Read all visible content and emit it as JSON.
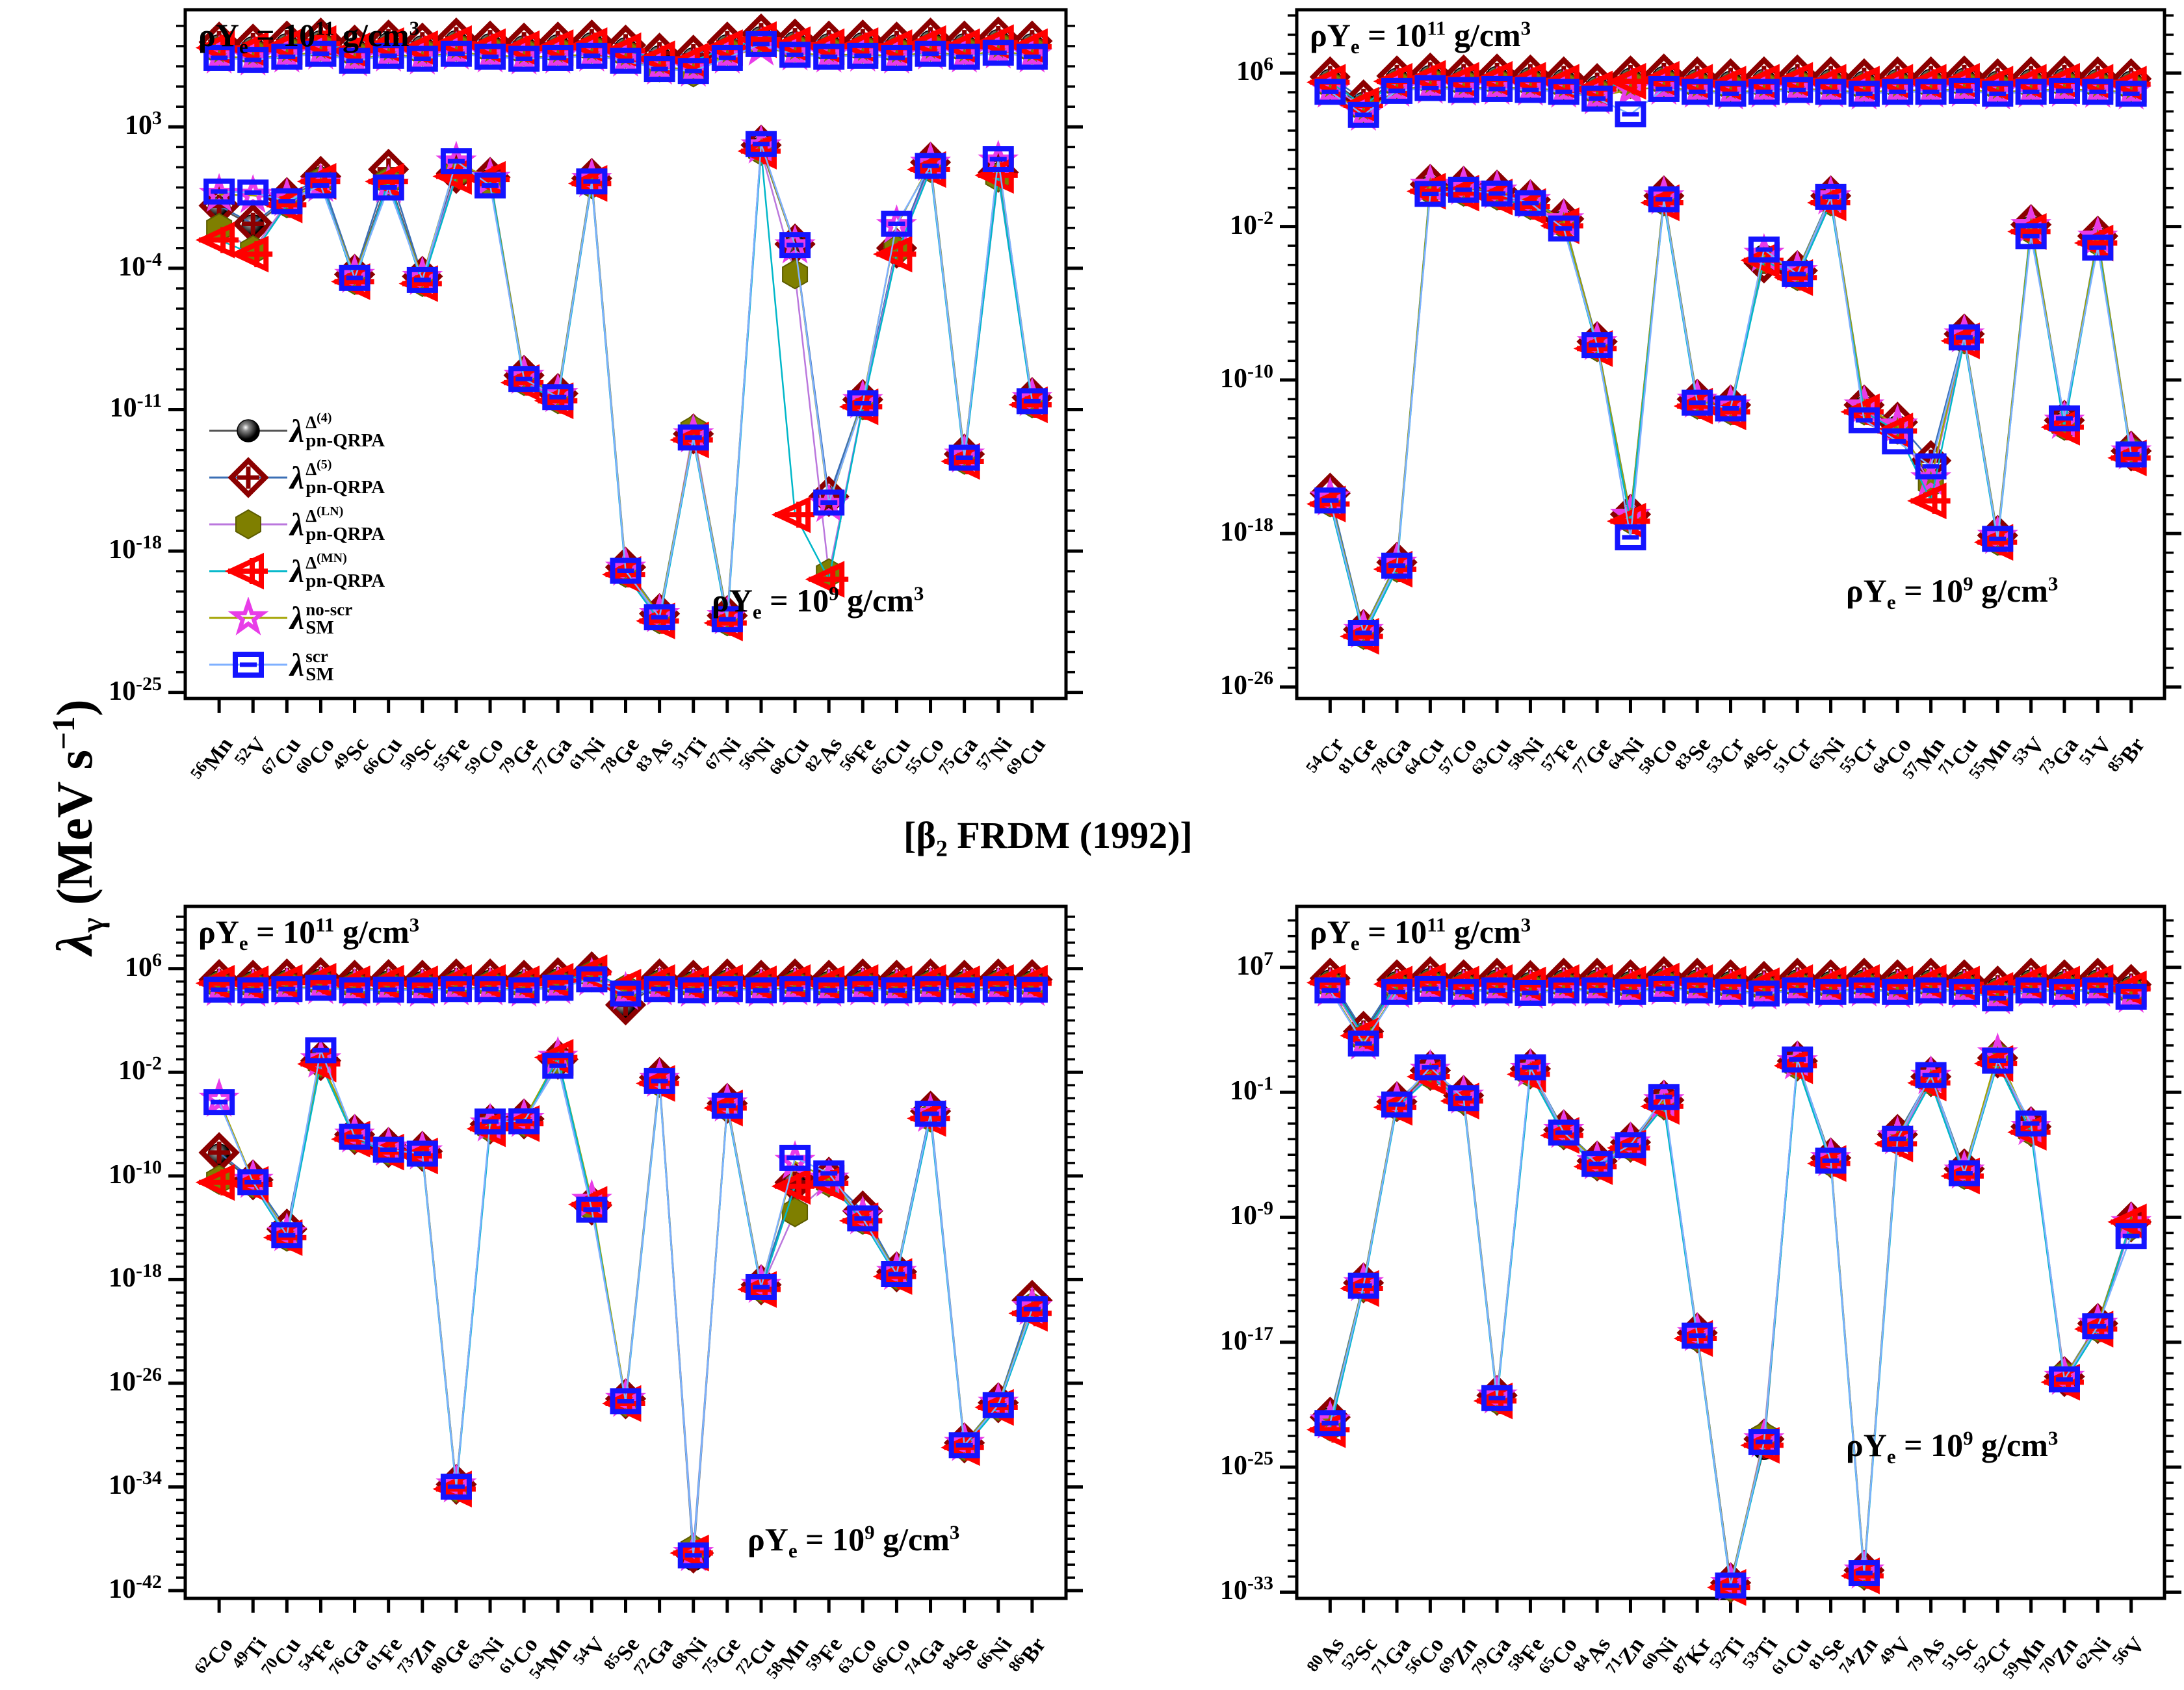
{
  "figure": {
    "ylabel": {
      "lambda": "λ",
      "sub": "γ",
      "rest": " (MeV s",
      "exp": "−1",
      "close": ")"
    },
    "caption": {
      "prefix": "[β",
      "sub": "2",
      "suffix": " FRDM (1992)]"
    },
    "annotation": {
      "rho": "ρY",
      "sub": "e",
      "eq": " = 10",
      "exp_high": "11",
      "exp_low": "9",
      "unit": " g/cm",
      "unit_exp": "3"
    },
    "background": "#ffffff",
    "axis_color": "#000000"
  },
  "series": [
    {
      "id": "circ",
      "lambda": "λ",
      "marker": "ball-icon",
      "color": "#000000",
      "line_color": "#555555",
      "sup_main": "Δ",
      "sup_exp": "(4)",
      "sub": "pn-QRPA"
    },
    {
      "id": "di",
      "lambda": "λ",
      "marker": "crossed-diamond-icon",
      "color": "#8b0000",
      "line_color": "#3b6fb5",
      "sup_main": "Δ",
      "sup_exp": "(5)",
      "sub": "pn-QRPA"
    },
    {
      "id": "hex",
      "lambda": "λ",
      "marker": "hexagon-icon",
      "color": "#7f7f00",
      "line_color": "#bb77dd",
      "sup_main": "Δ",
      "sup_exp": "(LN)",
      "sub": "pn-QRPA"
    },
    {
      "id": "tri",
      "lambda": "λ",
      "marker": "crossed-triangle-icon",
      "color": "#ff0000",
      "line_color": "#00b7c9",
      "sup_main": "Δ",
      "sup_exp": "(MN)",
      "sub": "pn-QRPA"
    },
    {
      "id": "star",
      "lambda": "λ",
      "marker": "star-icon",
      "color": "#e83ce8",
      "line_color": "#a3a300",
      "sup_main": "no-scr",
      "sup_exp": "",
      "sub": "SM"
    },
    {
      "id": "sq",
      "lambda": "λ",
      "marker": "crossed-square-icon",
      "color": "#1414ff",
      "line_color": "#7fb0ff",
      "sup_main": "scr",
      "sup_exp": "",
      "sub": "SM"
    }
  ],
  "chart_data": {
    "type": "line",
    "log_scale": true,
    "ylabel": "λγ (MeV s⁻¹)",
    "caption": "[β2 FRDM (1992)]",
    "legend_position": "upper-left panel, inside",
    "series_legend": [
      "λ^Δ(4)_pn-QRPA",
      "λ^Δ(5)_pn-QRPA",
      "λ^Δ(LN)_pn-QRPA",
      "λ^Δ(MN)_pn-QRPA",
      "λ^no-scr_SM",
      "λ^scr_SM"
    ],
    "panels": [
      {
        "id": "top-left",
        "ylim": [
          -25.3,
          8.8
        ],
        "ytick_exponents": [
          3,
          -4,
          -11,
          -18,
          -25
        ],
        "categories": [
          "56Mn",
          "52V",
          "67Cu",
          "60Co",
          "49Sc",
          "66Cu",
          "50Sc",
          "55Fe",
          "59Co",
          "79Ge",
          "77Ga",
          "61Ni",
          "78Ge",
          "83As",
          "51Ti",
          "67Ni",
          "56Ni",
          "68Cu",
          "82As",
          "56Fe",
          "65Cu",
          "55Co",
          "75Ga",
          "57Ni",
          "69Cu"
        ],
        "high": [
          6.9,
          6.8,
          6.95,
          7.1,
          6.75,
          7.0,
          6.85,
          7.1,
          6.95,
          6.85,
          6.9,
          7.0,
          6.75,
          6.35,
          6.25,
          6.9,
          7.3,
          7.05,
          6.95,
          7.0,
          6.9,
          7.1,
          6.95,
          7.15,
          6.95
        ],
        "low": [
          -2.3,
          -2.9,
          -0.7,
          0.4,
          -4.5,
          0.4,
          -4.6,
          0.8,
          0.3,
          -9.5,
          -10.4,
          0.25,
          -19.0,
          -21.3,
          -12.4,
          -21.4,
          1.9,
          -3.0,
          -15.6,
          -10.7,
          -3.0,
          1.05,
          -13.4,
          0.6,
          -10.6
        ],
        "high_overrides": {
          "13": {
            "hex": 5.95
          },
          "14": {
            "hex": 5.7
          },
          "16": {
            "sq": 7.1
          }
        },
        "low_overrides": {
          "0": {
            "circ": -1.0,
            "di": -0.9,
            "hex": -2.0,
            "tri": -2.6,
            "star": -0.35,
            "sq": -0.2
          },
          "1": {
            "circ": -1.9,
            "di": -1.8,
            "hex": -3.1,
            "tri": -3.3,
            "star": -0.4,
            "sq": -0.25
          },
          "3": {
            "di": 0.55,
            "tri": 0.3,
            "sq": 0.1,
            "star": 0.15
          },
          "5": {
            "di": 0.9,
            "tri": 0.3,
            "sq": 0.0,
            "star": 0.1
          },
          "7": {
            "sq": 1.3,
            "star": 1.25,
            "tri": 0.55,
            "di": 0.7
          },
          "8": {
            "sq": 0.1,
            "tri": 0.4
          },
          "11": {
            "sq": 0.3,
            "tri": 0.2
          },
          "14": {
            "hex": -12.0,
            "tri": -12.5,
            "circ": -12.3
          },
          "16": {
            "sq": 2.15,
            "star": 2.05,
            "tri": 1.8
          },
          "17": {
            "di": -2.8,
            "circ": -2.9,
            "hex": -4.3,
            "tri": -16.2,
            "sq": -2.85,
            "star": -2.9
          },
          "18": {
            "circ": -15.5,
            "di": -15.3,
            "sq": -15.6,
            "star": -15.7,
            "tri": -19.4,
            "hex": -19.1
          },
          "20": {
            "sq": -1.8,
            "star": -1.9,
            "tri": -3.3,
            "di": -3.0
          },
          "23": {
            "sq": 1.4,
            "star": 1.3,
            "tri": 0.6,
            "di": 0.75
          }
        }
      },
      {
        "id": "top-right",
        "ylim": [
          -26.6,
          9.3
        ],
        "ytick_exponents": [
          6,
          -2,
          -10,
          -18,
          -26
        ],
        "categories": [
          "54Cr",
          "81Ge",
          "78Ga",
          "64Cu",
          "57Co",
          "63Cu",
          "58Ni",
          "57Fe",
          "77Ge",
          "64Ni",
          "58Co",
          "83Se",
          "53Cr",
          "48Sc",
          "51Cr",
          "65Ni",
          "55Cr",
          "64Co",
          "57Mn",
          "71Cu",
          "55Mn",
          "53V",
          "73Ga",
          "51V",
          "85Br"
        ],
        "high": [
          5.5,
          4.3,
          5.55,
          5.7,
          5.6,
          5.65,
          5.6,
          5.5,
          5.15,
          5.55,
          5.65,
          5.5,
          5.4,
          5.5,
          5.6,
          5.5,
          5.4,
          5.5,
          5.5,
          5.55,
          5.4,
          5.5,
          5.55,
          5.5,
          5.4
        ],
        "low": [
          -16.3,
          -23.2,
          -19.7,
          0.0,
          -0.1,
          -0.3,
          -0.8,
          -1.8,
          -8.2,
          -17.2,
          -0.6,
          -11.2,
          -11.5,
          -3.6,
          -4.5,
          -0.6,
          -11.5,
          -12.5,
          -15.3,
          -7.8,
          -18.3,
          -2.1,
          -12.3,
          -2.7,
          -13.9
        ],
        "high_overrides": {
          "9": {
            "sq": 3.85
          }
        },
        "low_overrides": {
          "0": {
            "di": -15.9
          },
          "3": {
            "sq": -0.3
          },
          "7": {
            "sq": -2.1
          },
          "9": {
            "sq": -18.2
          },
          "13": {
            "sq": -3.2,
            "di": -3.9
          },
          "14": {
            "di": -4.3
          },
          "15": {
            "sq": -0.45
          },
          "16": {
            "sq": -12.1
          },
          "17": {
            "sq": -13.2,
            "di": -12.2
          },
          "18": {
            "di": -14.2,
            "tri": -16.3,
            "sq": -14.5
          },
          "19": {
            "di": -7.6
          },
          "21": {
            "sq": -2.5
          },
          "22": {
            "sq": -12.0
          },
          "23": {
            "sq": -3.1,
            "di": -2.5
          },
          "24": {
            "hex": -13.7
          }
        }
      },
      {
        "id": "bottom-left",
        "ylim": [
          -42.6,
          10.8
        ],
        "ytick_exponents": [
          6,
          -2,
          -10,
          -18,
          -26,
          -34,
          -42
        ],
        "categories": [
          "62Co",
          "49Ti",
          "70Cu",
          "54Fe",
          "76Ga",
          "61Fe",
          "73Zn",
          "80Ge",
          "63Ni",
          "61Co",
          "54Mn",
          "54V",
          "85Se",
          "72Ga",
          "68Ni",
          "75Ge",
          "72Cu",
          "58Mn",
          "59Fe",
          "63Co",
          "66Co",
          "74Ga",
          "84Se",
          "66Ni",
          "86Br"
        ],
        "high": [
          4.85,
          4.8,
          4.9,
          5.0,
          4.8,
          4.85,
          4.8,
          4.9,
          4.9,
          4.8,
          5.0,
          5.65,
          4.55,
          4.9,
          4.8,
          4.9,
          4.8,
          4.9,
          4.8,
          4.9,
          4.8,
          4.9,
          4.8,
          4.9,
          4.85
        ],
        "low": [
          -8.5,
          -10.5,
          -14.6,
          -1.2,
          -7.0,
          -8.0,
          -8.3,
          -34.0,
          -6.2,
          -5.8,
          -1.0,
          -12.3,
          -27.4,
          -2.7,
          -39.3,
          -4.6,
          -18.6,
          -10.8,
          -10.4,
          -13.3,
          -17.6,
          -5.4,
          -30.8,
          -27.7,
          -20.3
        ],
        "high_overrides": {
          "11": {
            "circ": 5.9,
            "di": 5.75
          },
          "12": {
            "circ": 3.0,
            "di": 3.2
          }
        },
        "low_overrides": {
          "0": {
            "sq": -4.3,
            "star": -4.1,
            "di": -8.2,
            "circ": -8.4,
            "tri": -10.5,
            "hex": -10.3
          },
          "2": {
            "di": -14.1
          },
          "3": {
            "sq": -0.3,
            "di": -1.1
          },
          "8": {
            "sq": -5.8,
            "star": -6.0
          },
          "10": {
            "sq": -1.5,
            "di": -1.0,
            "tri": -0.85
          },
          "11": {
            "sq": -12.6,
            "star": -11.9,
            "circ": -12.3,
            "tri": -12.2,
            "hex": -12.4,
            "di": -12.25
          },
          "13": {
            "di": -2.4
          },
          "14": {
            "circ": -39.6,
            "hex": -38.8,
            "tri": -39.1
          },
          "17": {
            "sq": -8.6,
            "star": -8.9,
            "tri": -10.8,
            "hex": -12.8,
            "di": -10.5,
            "circ": -10.6
          },
          "18": {
            "sq": -9.8,
            "di": -10.1
          },
          "19": {
            "di": -12.7
          },
          "21": {
            "di": -5.0,
            "sq": -5.2
          },
          "24": {
            "di": -19.6,
            "hex": -20.1,
            "tri": -20.6
          }
        }
      },
      {
        "id": "bottom-right",
        "ylim": [
          -33.4,
          10.9
        ],
        "ytick_exponents": [
          7,
          -1,
          -9,
          -17,
          -25,
          -33
        ],
        "categories": [
          "80As",
          "52Sc",
          "71Ga",
          "56Co",
          "69Zn",
          "79Ga",
          "58Fe",
          "65Co",
          "84As",
          "71Zn",
          "60Ni",
          "87Kr",
          "52Ti",
          "53Ti",
          "61Cu",
          "81Se",
          "74Zn",
          "49V",
          "79As",
          "51Sc",
          "52Cr",
          "59Mn",
          "70Zn",
          "62Ni",
          "56V"
        ],
        "high": [
          6.0,
          2.6,
          5.9,
          6.1,
          5.9,
          6.0,
          5.85,
          6.0,
          6.0,
          5.9,
          6.1,
          6.0,
          5.9,
          5.8,
          6.0,
          5.9,
          6.0,
          5.9,
          6.0,
          5.9,
          5.5,
          6.0,
          5.9,
          6.0,
          5.6
        ],
        "low": [
          -22.2,
          -13.4,
          -1.8,
          0.2,
          -1.4,
          -20.6,
          0.3,
          -3.6,
          -5.6,
          -4.4,
          -1.7,
          -16.6,
          -32.6,
          -23.4,
          0.8,
          -5.4,
          -31.8,
          -4.0,
          -0.2,
          -6.2,
          1.0,
          -3.4,
          -19.4,
          -16.0,
          -9.5
        ],
        "high_overrides": {},
        "low_overrides": {
          "0": {
            "di": -21.8,
            "circ": -21.9,
            "tri": -22.6,
            "hex": -22.4
          },
          "3": {
            "sq": 0.6,
            "star": 0.4,
            "tri": 0.0
          },
          "6": {
            "sq": 0.6,
            "star": 0.45,
            "tri": 0.15
          },
          "10": {
            "sq": -1.3,
            "tri": -1.9
          },
          "12": {
            "circ": -32.3,
            "tri": -32.7
          },
          "13": {
            "hex": -23.0,
            "tri": -23.6,
            "circ": -23.8
          },
          "14": {
            "sq": 1.1,
            "tri": 0.7
          },
          "15": {
            "di": -5.2
          },
          "17": {
            "di": -3.7,
            "circ": -3.8,
            "tri": -4.3
          },
          "18": {
            "sq": 0.1,
            "star": 0.0,
            "tri": -0.4
          },
          "19": {
            "di": -5.9
          },
          "20": {
            "hex": 1.3,
            "star": 1.45
          },
          "21": {
            "sq": -3.0
          },
          "22": {
            "hex": -19.1
          },
          "24": {
            "sq": -10.2,
            "tri": -9.3
          }
        }
      }
    ]
  }
}
